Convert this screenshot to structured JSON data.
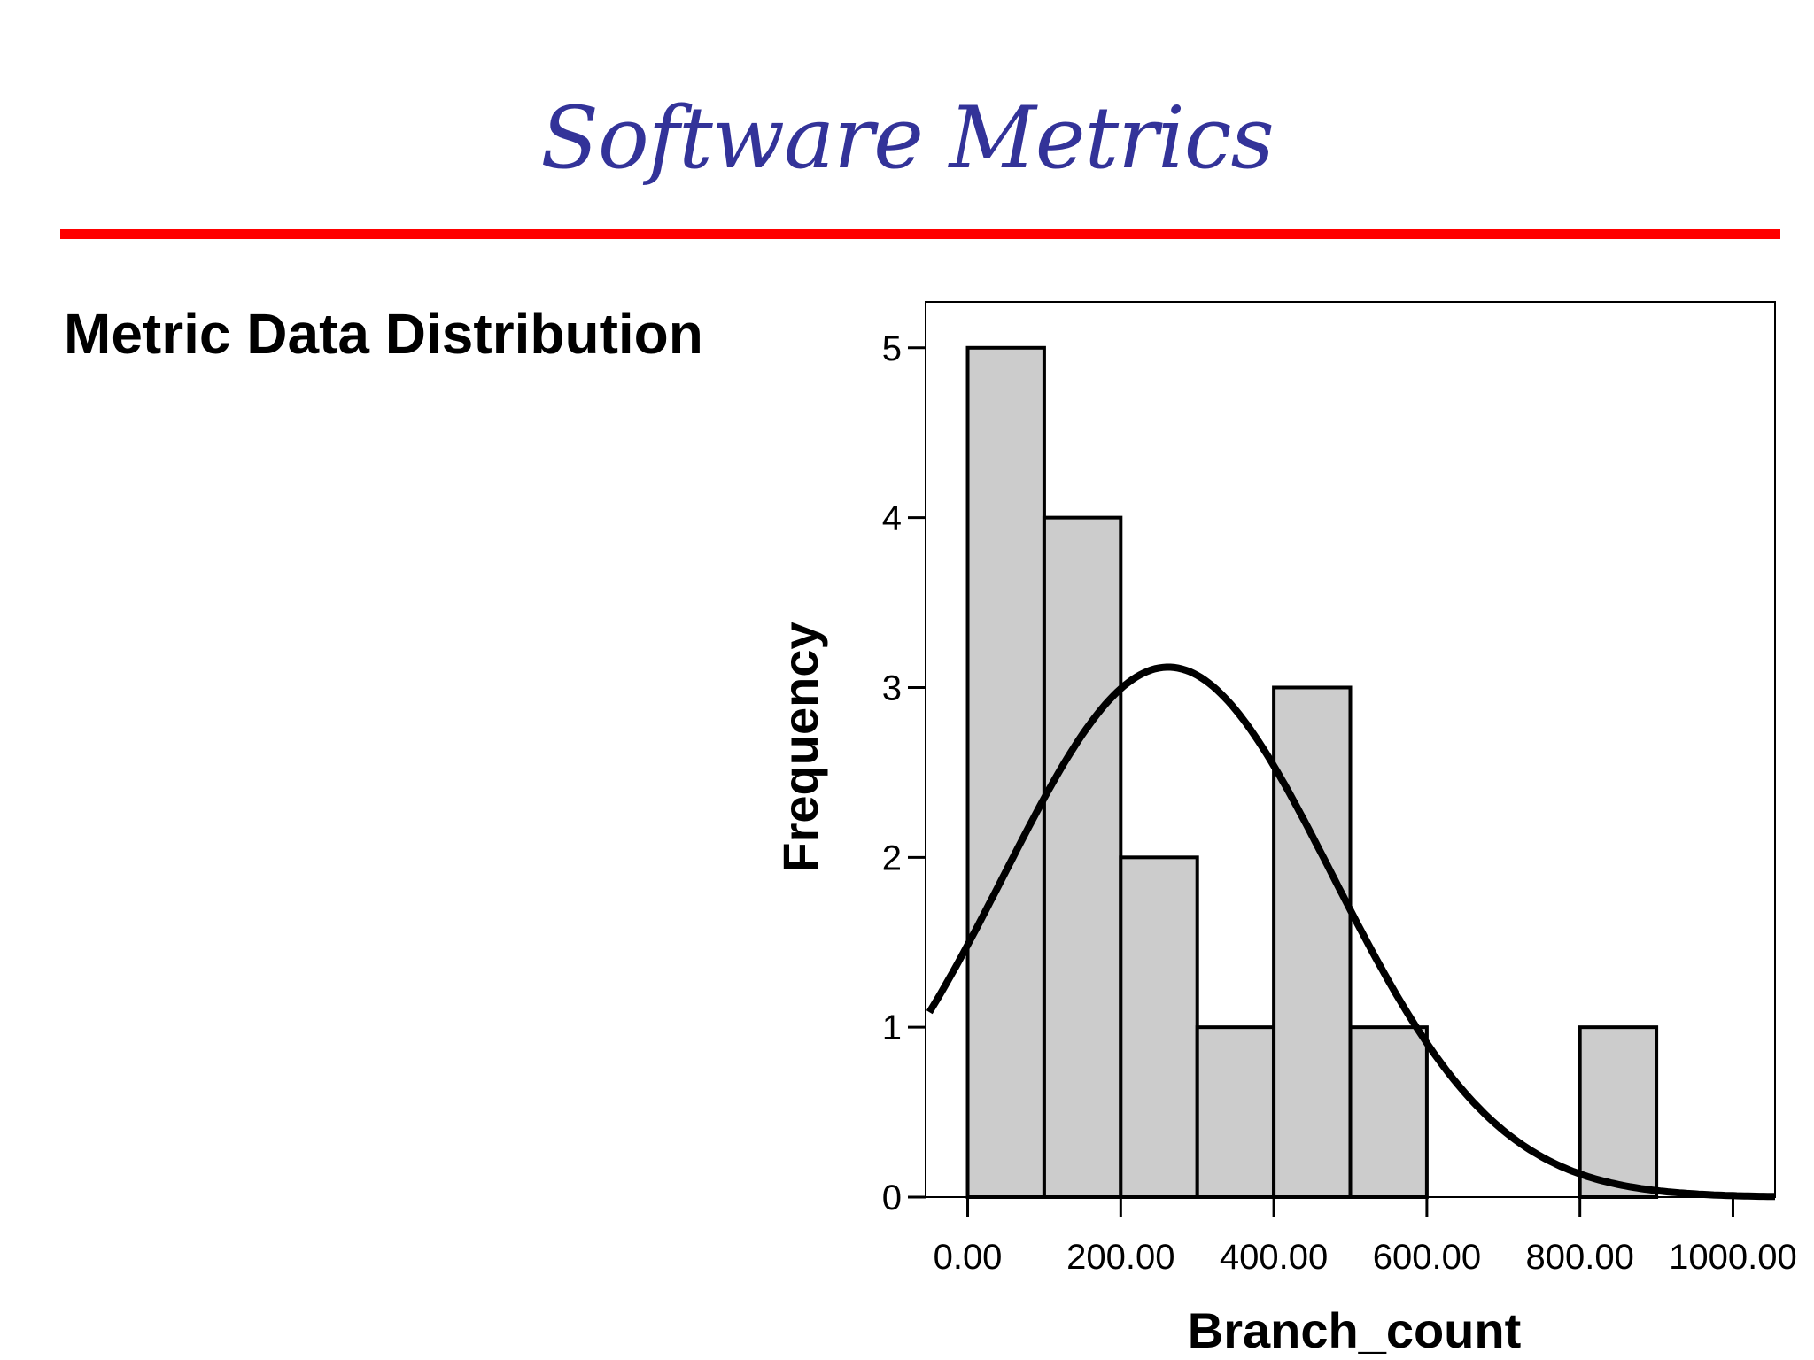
{
  "slide": {
    "title": "Software Metrics",
    "heading": "Metric Data Distribution"
  },
  "colors": {
    "title": "#333399",
    "rule": "#ff0000",
    "bar_fill": "#cccccc",
    "bar_stroke": "#000000",
    "curve": "#000000"
  },
  "chart_data": {
    "type": "bar",
    "subtype": "histogram with normal curve",
    "xlabel": "Branch_count",
    "ylabel": "Frequency",
    "xlim": [
      -55,
      1055
    ],
    "ylim": [
      0,
      5.27
    ],
    "x_ticks": [
      0,
      200,
      400,
      600,
      800,
      1000
    ],
    "x_tick_labels": [
      "0.00",
      "200.00",
      "400.00",
      "600.00",
      "800.00",
      "1000.00"
    ],
    "y_ticks": [
      0,
      1,
      2,
      3,
      4,
      5
    ],
    "y_tick_labels": [
      "0",
      "1",
      "2",
      "3",
      "4",
      "5"
    ],
    "bins": [
      {
        "x0": 0,
        "x1": 100,
        "count": 5
      },
      {
        "x0": 100,
        "x1": 200,
        "count": 4
      },
      {
        "x0": 200,
        "x1": 300,
        "count": 2
      },
      {
        "x0": 300,
        "x1": 400,
        "count": 1
      },
      {
        "x0": 400,
        "x1": 500,
        "count": 3
      },
      {
        "x0": 500,
        "x1": 600,
        "count": 1
      },
      {
        "x0": 800,
        "x1": 900,
        "count": 1
      }
    ],
    "normal_curve": {
      "mean": 262,
      "sd": 215,
      "peak": 3.12
    },
    "grid": false
  }
}
